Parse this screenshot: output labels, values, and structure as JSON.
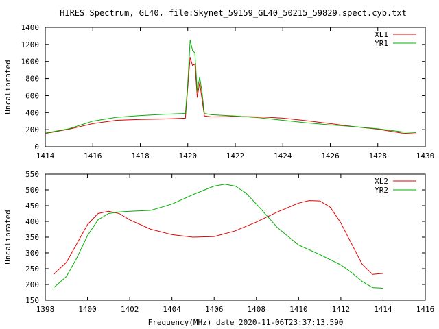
{
  "title": "HIRES Spectrum, GL40, file:Skynet_59159_GL40_50215_59829.spect.cyb.txt",
  "colors": {
    "red": "#e00000",
    "green": "#00b000",
    "axis": "#000000"
  },
  "chart_data": [
    {
      "type": "line",
      "title": "HIRES Spectrum, GL40, file:Skynet_59159_GL40_50215_59829.spect.cyb.txt",
      "xlabel": "",
      "ylabel": "Uncalibrated",
      "xlim": [
        1414,
        1430
      ],
      "ylim": [
        0,
        1400
      ],
      "xticks": [
        1414,
        1416,
        1418,
        1420,
        1422,
        1424,
        1426,
        1428,
        1430
      ],
      "yticks": [
        0,
        200,
        400,
        600,
        800,
        1000,
        1200,
        1400
      ],
      "legend_position": "top-right",
      "grid": false,
      "series": [
        {
          "name": "XL1",
          "color": "#e00000",
          "x": [
            1414.0,
            1415.0,
            1416.0,
            1417.0,
            1418.0,
            1419.0,
            1419.9,
            1420.0,
            1420.1,
            1420.2,
            1420.3,
            1420.4,
            1420.5,
            1420.6,
            1420.7,
            1421.0,
            1422.0,
            1423.0,
            1424.0,
            1425.0,
            1426.0,
            1427.0,
            1428.0,
            1429.0,
            1429.6
          ],
          "values": [
            155,
            205,
            270,
            310,
            320,
            325,
            335,
            700,
            1050,
            950,
            970,
            580,
            750,
            560,
            360,
            350,
            355,
            350,
            335,
            305,
            270,
            235,
            205,
            160,
            150
          ]
        },
        {
          "name": "YR1",
          "color": "#00b000",
          "x": [
            1414.0,
            1415.0,
            1416.0,
            1417.0,
            1418.0,
            1419.0,
            1419.9,
            1420.0,
            1420.1,
            1420.2,
            1420.3,
            1420.4,
            1420.5,
            1420.6,
            1420.7,
            1421.0,
            1422.0,
            1423.0,
            1424.0,
            1425.0,
            1426.0,
            1427.0,
            1428.0,
            1429.0,
            1429.6
          ],
          "values": [
            160,
            210,
            300,
            345,
            365,
            380,
            390,
            750,
            1250,
            1130,
            1100,
            650,
            820,
            640,
            390,
            375,
            360,
            340,
            310,
            280,
            255,
            235,
            210,
            175,
            165
          ]
        }
      ]
    },
    {
      "type": "line",
      "xlabel": "Frequency(MHz) date 2020-11-06T23:37:13.590",
      "ylabel": "Uncalibrated",
      "xlim": [
        1398,
        1416
      ],
      "ylim": [
        150,
        550
      ],
      "xticks": [
        1398,
        1400,
        1402,
        1404,
        1406,
        1408,
        1410,
        1412,
        1414,
        1416
      ],
      "yticks": [
        150,
        200,
        250,
        300,
        350,
        400,
        450,
        500,
        550
      ],
      "legend_position": "top-right",
      "grid": false,
      "series": [
        {
          "name": "XL2",
          "color": "#e00000",
          "x": [
            1398.4,
            1399.0,
            1399.5,
            1400.0,
            1400.5,
            1401.0,
            1401.5,
            1402.0,
            1403.0,
            1404.0,
            1405.0,
            1406.0,
            1407.0,
            1408.0,
            1409.0,
            1410.0,
            1410.5,
            1411.0,
            1411.5,
            1412.0,
            1412.5,
            1413.0,
            1413.5,
            1414.0
          ],
          "values": [
            232,
            270,
            330,
            390,
            425,
            432,
            425,
            405,
            375,
            358,
            350,
            352,
            370,
            398,
            430,
            458,
            466,
            465,
            445,
            395,
            330,
            265,
            232,
            235
          ]
        },
        {
          "name": "YR2",
          "color": "#00b000",
          "x": [
            1398.4,
            1399.0,
            1399.5,
            1400.0,
            1400.5,
            1401.0,
            1401.5,
            1402.0,
            1403.0,
            1404.0,
            1405.0,
            1406.0,
            1406.5,
            1407.0,
            1407.5,
            1408.0,
            1409.0,
            1410.0,
            1411.0,
            1412.0,
            1412.5,
            1413.0,
            1413.5,
            1414.0
          ],
          "values": [
            190,
            225,
            285,
            355,
            405,
            425,
            430,
            432,
            435,
            455,
            485,
            512,
            518,
            512,
            490,
            455,
            380,
            325,
            295,
            262,
            238,
            210,
            190,
            188
          ]
        }
      ]
    }
  ]
}
